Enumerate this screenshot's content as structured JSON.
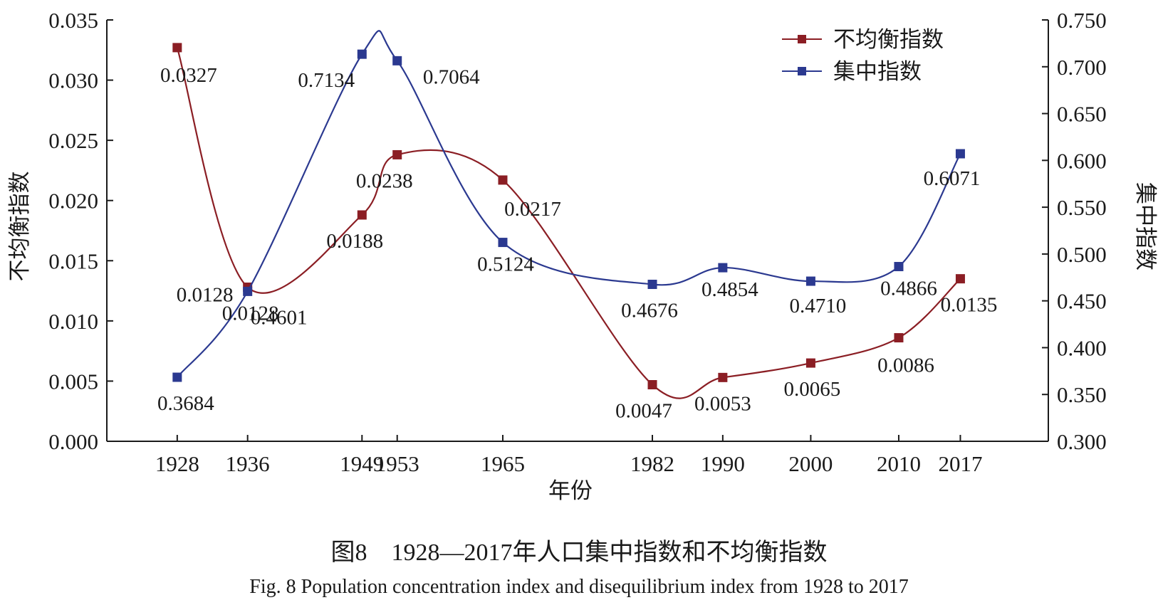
{
  "chart_data": {
    "type": "line",
    "x": [
      1928,
      1936,
      1949,
      1953,
      1965,
      1982,
      1990,
      2000,
      2010,
      2017
    ],
    "xlabel": "年份",
    "xlim": [
      1920,
      2027
    ],
    "y_left": {
      "label": "不均衡指数",
      "range": [
        0,
        0.035
      ],
      "ticks": [
        "0.000",
        "0.005",
        "0.010",
        "0.015",
        "0.020",
        "0.025",
        "0.030",
        "0.035"
      ]
    },
    "y_right": {
      "label": "集中指数",
      "range": [
        0.3,
        0.75
      ],
      "ticks": [
        "0.300",
        "0.350",
        "0.400",
        "0.450",
        "0.500",
        "0.550",
        "0.600",
        "0.650",
        "0.700",
        "0.750"
      ]
    },
    "series": [
      {
        "name": "不均衡指数",
        "axis": "left",
        "color": "#8B1E24",
        "values": [
          0.0327,
          0.0128,
          0.0188,
          0.0238,
          0.0217,
          0.0047,
          0.0053,
          0.0065,
          0.0086,
          0.0135
        ],
        "labels": [
          "0.0327",
          "0.0128",
          "0.0188",
          "0.0238",
          "0.0217",
          "0.0047",
          "0.0053",
          "0.0065",
          "0.0086",
          "0.0135"
        ]
      },
      {
        "name": "集中指数",
        "axis": "right",
        "color": "#2B3990",
        "values": [
          0.3684,
          0.4601,
          0.7134,
          0.7064,
          0.5124,
          0.4676,
          0.4854,
          0.471,
          0.4866,
          0.6071
        ],
        "labels": [
          "0.3684",
          "0.4601",
          "0.7134",
          "0.7064",
          "0.5124",
          "0.4676",
          "0.4854",
          "0.4710",
          "0.4866",
          "0.6071"
        ]
      }
    ],
    "extra_labels": [
      "0.0128"
    ],
    "legend_position": "top-right",
    "grid": false,
    "caption": {
      "cn": "图8　1928—2017年人口集中指数和不均衡指数",
      "en": "Fig. 8   Population concentration index and disequilibrium index from 1928 to 2017"
    }
  }
}
